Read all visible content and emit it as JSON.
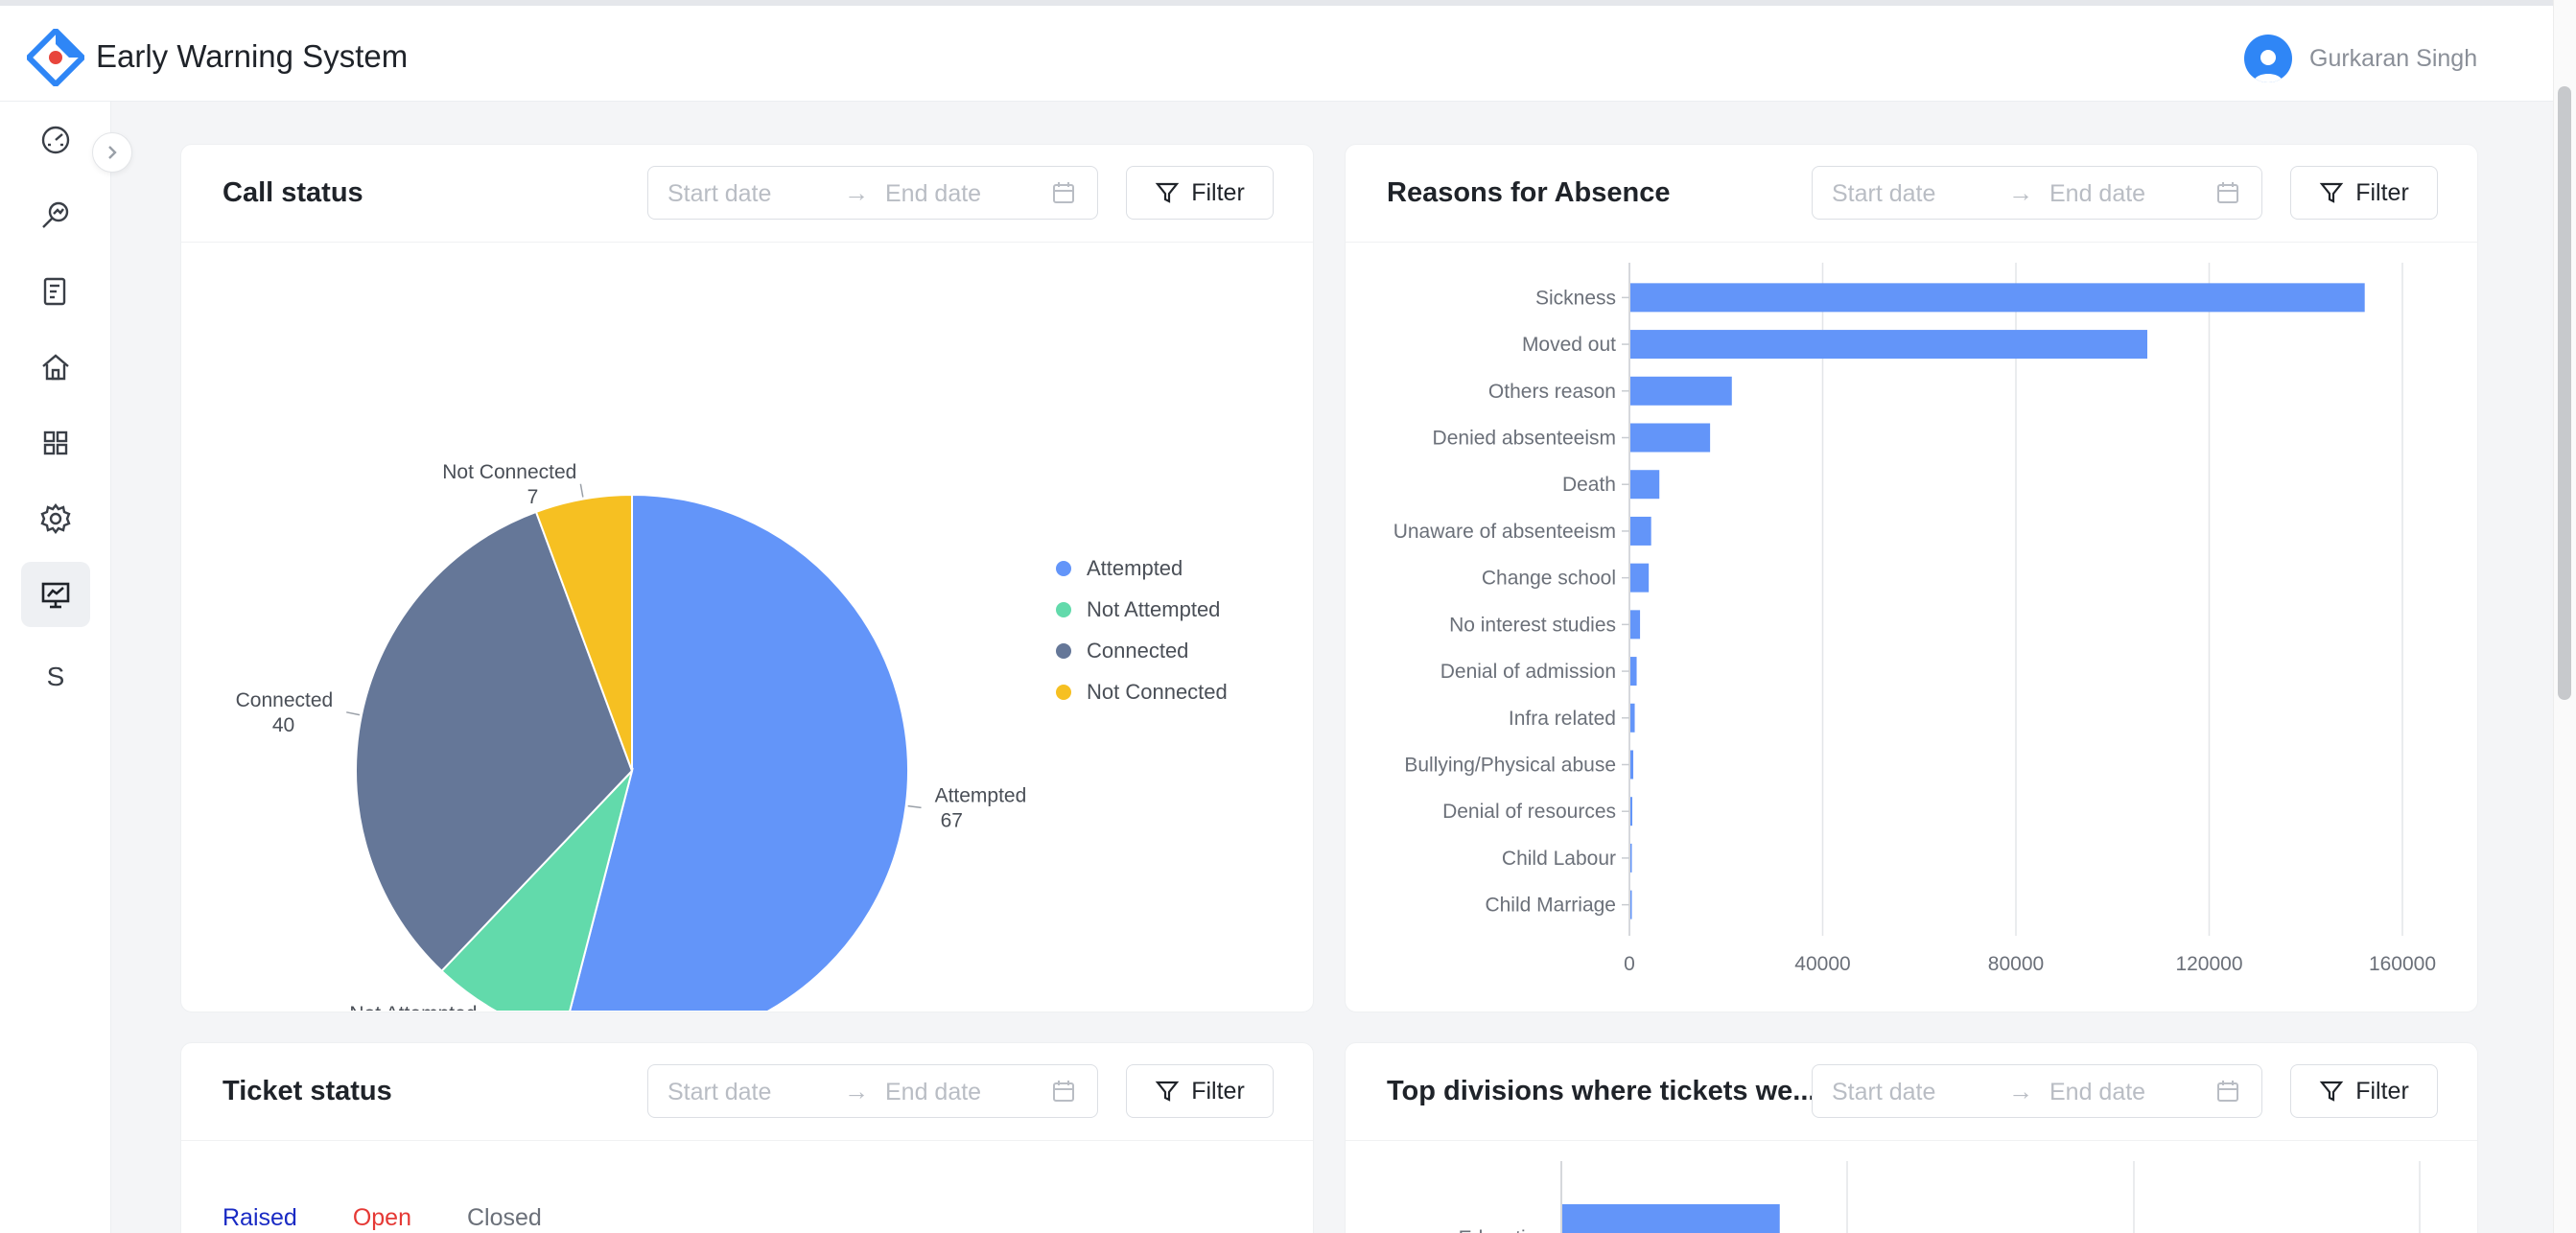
{
  "app": {
    "title": "Early Warning System"
  },
  "user": {
    "name": "Gurkaran Singh"
  },
  "sidebar": {
    "items": [
      {
        "icon": "dashboard-gauge-icon"
      },
      {
        "icon": "search-analytics-icon"
      },
      {
        "icon": "report-document-icon"
      },
      {
        "icon": "home-icon"
      },
      {
        "icon": "apps-grid-icon"
      },
      {
        "icon": "settings-gear-icon"
      },
      {
        "icon": "presentation-chart-icon",
        "active": true
      },
      {
        "icon": "letter-icon",
        "letter": "S"
      }
    ]
  },
  "date_range": {
    "start_placeholder": "Start date",
    "end_placeholder": "End date"
  },
  "filter_label": "Filter",
  "cards": {
    "call_status": {
      "title": "Call status"
    },
    "reasons": {
      "title": "Reasons for Absence"
    },
    "ticket_status": {
      "title": "Ticket status",
      "tabs": [
        {
          "label": "Raised",
          "color": "#1a2bc4"
        },
        {
          "label": "Open",
          "color": "#e53935"
        },
        {
          "label": "Closed",
          "color": "#6b7079"
        }
      ]
    },
    "top_divisions": {
      "title": "Top divisions where tickets we..."
    }
  },
  "colors": {
    "attempted": "#6395f9",
    "not_attempted": "#62daab",
    "connected": "#657798",
    "not_connected": "#f6c022",
    "bar": "#6395f9"
  },
  "chart_data": [
    {
      "type": "pie",
      "title": "Call status",
      "slices": [
        {
          "label": "Attempted",
          "value": 67
        },
        {
          "label": "Not Attempted",
          "value": 10
        },
        {
          "label": "Connected",
          "value": 40
        },
        {
          "label": "Not Connected",
          "value": 7
        }
      ],
      "legend_position": "right"
    },
    {
      "type": "bar",
      "orientation": "horizontal",
      "title": "Reasons for Absence",
      "categories": [
        "Sickness",
        "Moved out",
        "Others reason",
        "Denied absenteeism",
        "Death",
        "Unaware of absenteeism",
        "Change school",
        "No interest studies",
        "Denial of admission",
        "Infra related",
        "Bullying/Physical abuse",
        "Denial of resources",
        "Child Labour",
        "Child Marriage"
      ],
      "values": [
        152000,
        107000,
        21000,
        16500,
        6000,
        4300,
        3800,
        2000,
        1300,
        900,
        600,
        400,
        250,
        150
      ],
      "xlim": [
        0,
        160000
      ],
      "xticks": [
        "0",
        "40000",
        "80000",
        "120000",
        "160000"
      ],
      "grid": true
    },
    {
      "type": "bar",
      "orientation": "horizontal",
      "title": "Top divisions where tickets we...",
      "categories": [
        "Education"
      ],
      "values": [
        0.76
      ],
      "grid": true
    }
  ]
}
